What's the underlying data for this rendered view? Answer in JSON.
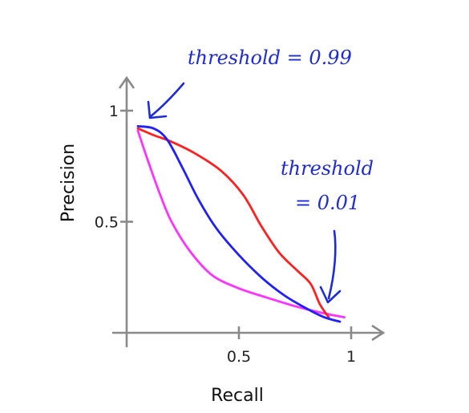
{
  "chart_data": {
    "type": "line",
    "xlabel": "Recall",
    "ylabel": "Precision",
    "xlim": [
      -0.05,
      1.15
    ],
    "ylim": [
      -0.02,
      1.15
    ],
    "xticks": [
      {
        "value": 0.5,
        "label": "0.5"
      },
      {
        "value": 1,
        "label": "1"
      }
    ],
    "yticks": [
      {
        "value": 0.5,
        "label": "0.5"
      },
      {
        "value": 1,
        "label": "1"
      }
    ],
    "grid": false,
    "legend": "none",
    "series": [
      {
        "color": "#ff33ff",
        "x": [
          0.05,
          0.1,
          0.15,
          0.2,
          0.28,
          0.38,
          0.5,
          0.62,
          0.75,
          0.87,
          0.97
        ],
        "y": [
          0.91,
          0.76,
          0.62,
          0.5,
          0.37,
          0.26,
          0.2,
          0.16,
          0.12,
          0.09,
          0.07
        ]
      },
      {
        "color": "#ff2020",
        "x": [
          0.05,
          0.12,
          0.2,
          0.3,
          0.42,
          0.52,
          0.6,
          0.68,
          0.76,
          0.82,
          0.86,
          0.9
        ],
        "y": [
          0.92,
          0.89,
          0.86,
          0.81,
          0.73,
          0.62,
          0.48,
          0.36,
          0.28,
          0.22,
          0.13,
          0.07
        ]
      },
      {
        "color": "#2020ff",
        "x": [
          0.05,
          0.12,
          0.18,
          0.25,
          0.32,
          0.4,
          0.5,
          0.6,
          0.7,
          0.8,
          0.88,
          0.95
        ],
        "y": [
          0.93,
          0.92,
          0.87,
          0.74,
          0.6,
          0.47,
          0.35,
          0.25,
          0.17,
          0.11,
          0.07,
          0.05
        ]
      }
    ],
    "annotations": [
      {
        "text": "threshold = 0.99",
        "at": [
          0.05,
          0.93
        ]
      },
      {
        "text_line1": "threshold",
        "text_line2": "= 0.01",
        "at": [
          0.88,
          0.08
        ]
      }
    ]
  }
}
